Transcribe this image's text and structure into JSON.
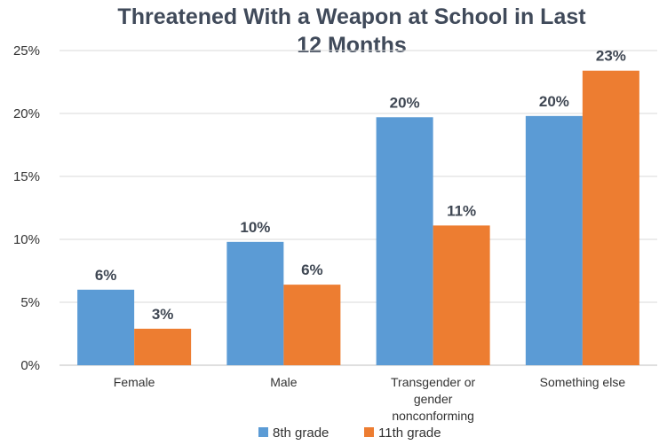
{
  "chart_data": {
    "type": "bar",
    "title_lines": [
      "Threatened With a Weapon at School in Last",
      "12 Months"
    ],
    "categories": [
      [
        "Female"
      ],
      [
        "Male"
      ],
      [
        "Transgender or",
        "gender",
        "nonconforming"
      ],
      [
        "Something else"
      ]
    ],
    "series": [
      {
        "name": "8th grade",
        "color": "#5b9bd5",
        "values": [
          6,
          9.8,
          19.7,
          19.8
        ],
        "labels": [
          "6%",
          "10%",
          "20%",
          "20%"
        ]
      },
      {
        "name": "11th grade",
        "color": "#ed7d31",
        "values": [
          2.9,
          6.4,
          11.1,
          23.4
        ],
        "labels": [
          "3%",
          "6%",
          "11%",
          "23%"
        ]
      }
    ],
    "ylim": [
      0,
      25
    ],
    "yticks": [
      0,
      5,
      10,
      15,
      20,
      25
    ],
    "ytick_labels": [
      "0%",
      "5%",
      "10%",
      "15%",
      "20%",
      "25%"
    ],
    "grid": true,
    "legend_position": "bottom"
  }
}
